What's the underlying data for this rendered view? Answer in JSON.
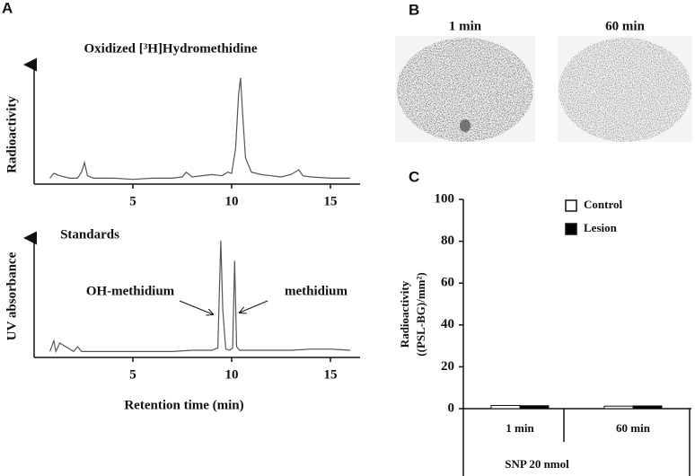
{
  "panel_labels": [
    "A",
    "B",
    "C"
  ],
  "images": {
    "labels": [
      "1 min",
      "60 min"
    ]
  },
  "chart_data": [
    {
      "type": "line",
      "title": "Oxidized [³H]Hydromethidine",
      "ylabel": "Radioactivity",
      "x": [
        0.8,
        1.0,
        1.3,
        1.8,
        2.2,
        2.4,
        2.55,
        2.7,
        3.0,
        4,
        5,
        6,
        7,
        7.5,
        7.7,
        8,
        9,
        9.5,
        9.8,
        10.0,
        10.2,
        10.35,
        10.45,
        10.55,
        10.7,
        11,
        11.5,
        12,
        12.5,
        13,
        13.4,
        13.6,
        14,
        15,
        16
      ],
      "series": [
        {
          "color": "#555555",
          "values": [
            5,
            9,
            7,
            5,
            5,
            10,
            18,
            7,
            5,
            5,
            4,
            5,
            5,
            6,
            10,
            6,
            8,
            7,
            10,
            9,
            30,
            75,
            89,
            60,
            22,
            10,
            8,
            7,
            6,
            8,
            12,
            7,
            6,
            5,
            5
          ]
        }
      ],
      "xlim": [
        0,
        16.5
      ],
      "xticks": [
        5,
        10,
        15
      ],
      "ylim": [
        0,
        100
      ]
    },
    {
      "type": "line",
      "title": "Standards",
      "ylabel": "UV absorbance",
      "xlabel": "Retention time (min)",
      "annotations": [
        "OH-methidium",
        "methidium"
      ],
      "x": [
        0.8,
        1.0,
        1.1,
        1.3,
        2.0,
        2.2,
        2.4,
        3,
        5,
        7,
        8,
        9,
        9.3,
        9.45,
        9.55,
        9.7,
        9.9,
        10.05,
        10.15,
        10.25,
        10.4,
        11,
        12,
        13,
        14,
        15,
        16
      ],
      "series": [
        {
          "color": "#555555",
          "values": [
            5,
            14,
            5,
            12,
            5,
            9,
            5,
            5,
            5,
            5,
            6,
            6,
            8,
            98,
            40,
            7,
            6,
            8,
            81,
            9,
            6,
            6,
            6,
            6,
            7,
            7,
            6
          ]
        }
      ],
      "xlim": [
        0,
        16.5
      ],
      "xticks": [
        5,
        10,
        15
      ],
      "ylim": [
        0,
        100
      ]
    },
    {
      "type": "bar",
      "ylabel": [
        "Radioactivity",
        "((PSL-BG)/mm²)"
      ],
      "xlabel": "SNP 20 nmol",
      "categories": [
        "1 min",
        "60 min"
      ],
      "series": [
        {
          "name": "Control",
          "color": "#ffffff",
          "values": [
            1.5,
            1.2
          ]
        },
        {
          "name": "Lesion",
          "color": "#000000",
          "values": [
            1.4,
            1.3
          ]
        }
      ],
      "ylim": [
        0,
        100
      ],
      "yticks": [
        0,
        20,
        40,
        60,
        80,
        100
      ]
    }
  ]
}
